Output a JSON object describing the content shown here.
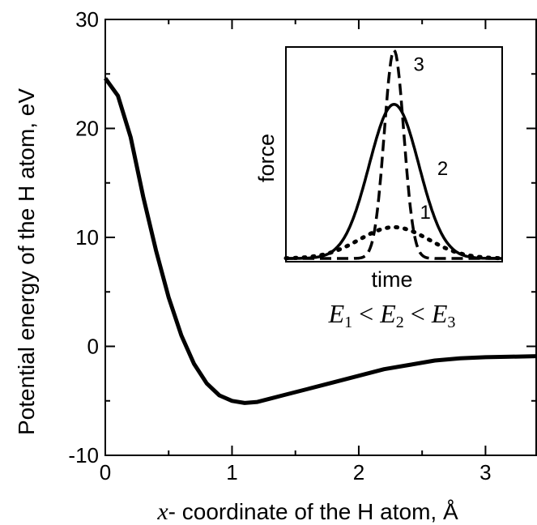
{
  "chart_data": [
    {
      "type": "line",
      "title": "",
      "xlabel_var": "x",
      "xlabel_rest": "- coordinate of the H atom, Å",
      "ylabel": "Potential energy of the H atom, eV",
      "xlim": [
        0,
        3.4
      ],
      "ylim": [
        -10,
        30
      ],
      "xticks": [
        0,
        1,
        2,
        3
      ],
      "xtick_labels": [
        "0",
        "1",
        "2",
        "3"
      ],
      "yticks": [
        -10,
        0,
        10,
        20,
        30
      ],
      "ytick_labels": [
        "-10",
        "0",
        "10",
        "20",
        "30"
      ],
      "grid": false,
      "series": [
        {
          "style": "solid",
          "points": [
            [
              0,
              24.6
            ],
            [
              0.1,
              23
            ],
            [
              0.2,
              19.2
            ],
            [
              0.3,
              13.7
            ],
            [
              0.4,
              8.8
            ],
            [
              0.5,
              4.5
            ],
            [
              0.6,
              1.0
            ],
            [
              0.7,
              -1.6
            ],
            [
              0.8,
              -3.4
            ],
            [
              0.9,
              -4.5
            ],
            [
              1.0,
              -5.0
            ],
            [
              1.1,
              -5.2
            ],
            [
              1.2,
              -5.1
            ],
            [
              1.3,
              -4.8
            ],
            [
              1.4,
              -4.5
            ],
            [
              1.6,
              -3.9
            ],
            [
              1.8,
              -3.3
            ],
            [
              2.0,
              -2.7
            ],
            [
              2.2,
              -2.1
            ],
            [
              2.4,
              -1.7
            ],
            [
              2.6,
              -1.3
            ],
            [
              2.8,
              -1.1
            ],
            [
              3.0,
              -1.0
            ],
            [
              3.2,
              -0.95
            ],
            [
              3.4,
              -0.9
            ]
          ]
        }
      ]
    },
    {
      "type": "line",
      "title": "",
      "xlabel": "time",
      "ylabel": "force",
      "xlim": [
        0,
        1
      ],
      "ylim": [
        0,
        1
      ],
      "series": [
        {
          "name": "1",
          "style": "dotted",
          "center": 0.5,
          "sigma": 0.16,
          "amplitude": 0.15
        },
        {
          "name": "2",
          "style": "solid",
          "center": 0.5,
          "sigma": 0.115,
          "amplitude": 0.74
        },
        {
          "name": "3",
          "style": "dashed",
          "center": 0.5,
          "sigma": 0.045,
          "amplitude": 1.0
        }
      ],
      "annotation": {
        "E": "E",
        "sub1": "1",
        "sub2": "2",
        "sub3": "3",
        "lt": "<"
      }
    }
  ]
}
